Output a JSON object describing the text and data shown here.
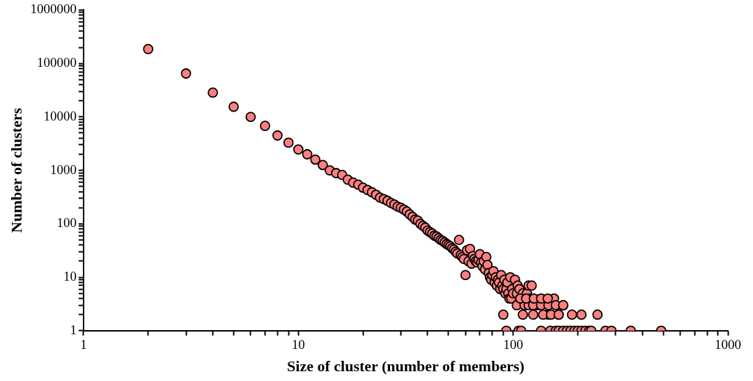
{
  "chart_data": {
    "type": "scatter",
    "xlabel": "Size of cluster (number of members)",
    "ylabel": "Number of clusters",
    "log": "xy",
    "grid": false,
    "legend": false,
    "marker": "circle",
    "xlim": [
      1,
      1000
    ],
    "ylim": [
      1,
      1000000
    ],
    "xticks": [
      1,
      {
        "value": 2,
        "label": null
      },
      {
        "value": 3,
        "label": null
      },
      {
        "value": 4,
        "label": null
      },
      {
        "value": 5,
        "label": null
      },
      {
        "value": 6,
        "label": null
      },
      {
        "value": 7,
        "label": null
      },
      {
        "value": 8,
        "label": null
      },
      {
        "value": 9,
        "label": null
      },
      10,
      {
        "value": 20,
        "label": null
      },
      {
        "value": 30,
        "label": null
      },
      {
        "value": 40,
        "label": null
      },
      {
        "value": 50,
        "label": null
      },
      {
        "value": 60,
        "label": null
      },
      {
        "value": 70,
        "label": null
      },
      {
        "value": 80,
        "label": null
      },
      {
        "value": 90,
        "label": null
      },
      100,
      {
        "value": 200,
        "label": null
      },
      {
        "value": 300,
        "label": null
      },
      {
        "value": 400,
        "label": null
      },
      {
        "value": 500,
        "label": null
      },
      {
        "value": 600,
        "label": null
      },
      {
        "value": 700,
        "label": null
      },
      {
        "value": 800,
        "label": null
      },
      {
        "value": 900,
        "label": null
      },
      1000
    ],
    "yticks": [
      1,
      {
        "value": 2,
        "label": null
      },
      {
        "value": 3,
        "label": null
      },
      {
        "value": 4,
        "label": null
      },
      {
        "value": 5,
        "label": null
      },
      {
        "value": 6,
        "label": null
      },
      {
        "value": 7,
        "label": null
      },
      {
        "value": 8,
        "label": null
      },
      {
        "value": 9,
        "label": null
      },
      10,
      {
        "value": 20,
        "label": null
      },
      {
        "value": 30,
        "label": null
      },
      {
        "value": 40,
        "label": null
      },
      {
        "value": 50,
        "label": null
      },
      {
        "value": 60,
        "label": null
      },
      {
        "value": 70,
        "label": null
      },
      {
        "value": 80,
        "label": null
      },
      {
        "value": 90,
        "label": null
      },
      100,
      {
        "value": 200,
        "label": null
      },
      {
        "value": 300,
        "label": null
      },
      {
        "value": 400,
        "label": null
      },
      {
        "value": 500,
        "label": null
      },
      {
        "value": 600,
        "label": null
      },
      {
        "value": 700,
        "label": null
      },
      {
        "value": 800,
        "label": null
      },
      {
        "value": 900,
        "label": null
      },
      1000,
      {
        "value": 2000,
        "label": null
      },
      {
        "value": 3000,
        "label": null
      },
      {
        "value": 4000,
        "label": null
      },
      {
        "value": 5000,
        "label": null
      },
      {
        "value": 6000,
        "label": null
      },
      {
        "value": 7000,
        "label": null
      },
      {
        "value": 8000,
        "label": null
      },
      {
        "value": 9000,
        "label": null
      },
      10000,
      {
        "value": 20000,
        "label": null
      },
      {
        "value": 30000,
        "label": null
      },
      {
        "value": 40000,
        "label": null
      },
      {
        "value": 50000,
        "label": null
      },
      {
        "value": 60000,
        "label": null
      },
      {
        "value": 70000,
        "label": null
      },
      {
        "value": 80000,
        "label": null
      },
      {
        "value": 90000,
        "label": null
      },
      100000,
      {
        "value": 200000,
        "label": null
      },
      {
        "value": 300000,
        "label": null
      },
      {
        "value": 400000,
        "label": null
      },
      {
        "value": 500000,
        "label": null
      },
      {
        "value": 600000,
        "label": null
      },
      {
        "value": 700000,
        "label": null
      },
      {
        "value": 800000,
        "label": null
      },
      {
        "value": 900000,
        "label": null
      },
      1000000
    ],
    "series": [
      {
        "color": "#ff7f7f",
        "x": [
          2,
          3,
          4,
          5,
          6,
          7,
          8,
          9,
          10,
          11,
          12,
          13,
          14,
          15,
          16,
          17,
          18,
          19,
          20,
          21,
          22,
          23,
          24,
          25,
          26,
          27,
          28,
          29,
          30,
          31,
          32,
          33,
          34,
          35,
          36,
          37,
          38,
          39,
          40,
          41,
          42,
          43,
          44,
          45,
          46,
          47,
          48,
          49,
          50,
          51,
          52,
          53,
          54,
          55,
          56,
          57,
          58,
          59,
          60,
          61,
          62,
          63,
          64,
          65,
          66,
          67,
          68,
          69,
          70,
          71,
          72,
          73,
          74,
          75,
          76,
          77,
          78,
          79,
          80,
          81,
          82,
          83,
          84,
          85,
          86,
          87,
          88,
          89,
          90,
          91,
          92,
          93,
          94,
          95,
          96,
          97,
          98,
          99,
          100,
          102,
          104,
          105,
          107,
          111,
          116,
          118,
          120,
          122,
          130,
          146,
          155,
          163,
          171,
          90,
          111,
          124,
          138,
          150,
          163,
          188,
          208,
          247,
          104,
          113,
          118,
          124,
          135,
          146,
          158,
          171,
          108,
          115,
          125,
          135,
          145,
          93,
          106,
          109,
          135,
          149,
          158,
          163,
          171,
          178,
          185,
          193,
          200,
          208,
          217,
          226,
          231,
          269,
          287,
          353,
          489
        ],
        "values": [
          186000,
          65000,
          28500,
          15500,
          10000,
          6800,
          4500,
          3300,
          2460,
          2000,
          1590,
          1260,
          1000,
          890,
          820,
          670,
          590,
          540,
          475,
          430,
          390,
          350,
          310,
          290,
          270,
          245,
          230,
          210,
          200,
          185,
          170,
          150,
          135,
          120,
          115,
          100,
          92,
          85,
          75,
          70,
          66,
          60,
          58,
          54,
          50,
          48,
          45,
          42,
          40,
          38,
          35,
          33,
          30,
          28,
          50,
          26,
          24,
          22,
          11,
          32,
          20,
          34,
          18,
          25,
          22,
          20,
          19,
          21,
          27,
          19,
          16,
          20,
          14,
          24,
          17,
          12,
          10,
          9,
          11,
          13,
          8,
          10,
          7,
          9,
          8,
          6,
          11,
          7,
          6,
          9,
          5,
          6,
          8,
          5,
          4,
          10,
          4,
          6,
          5,
          9,
          5,
          7,
          6,
          5,
          5,
          7,
          4,
          7,
          3,
          2,
          4,
          2,
          3,
          2,
          2,
          2,
          2,
          2,
          2,
          2,
          2,
          2,
          3,
          3,
          3,
          3,
          3,
          3,
          3,
          3,
          4,
          4,
          4,
          4,
          4,
          1,
          1,
          1,
          1,
          1,
          1,
          1,
          1,
          1,
          1,
          1,
          1,
          1,
          1,
          1,
          1,
          1,
          1,
          1,
          1
        ]
      }
    ]
  }
}
